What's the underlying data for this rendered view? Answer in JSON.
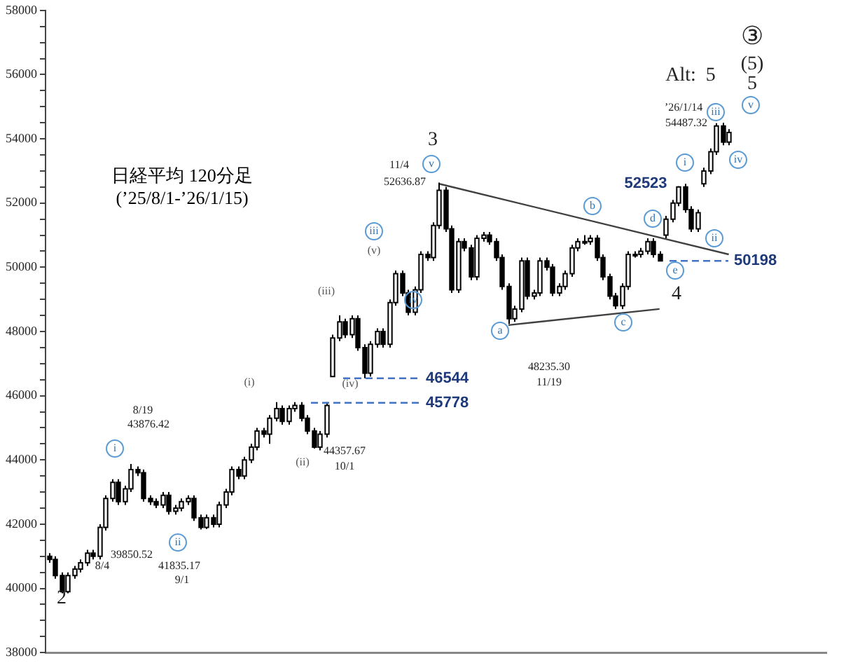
{
  "chart_data": {
    "type": "candlestick",
    "title": "日経平均 120分足",
    "subtitle": "(’25/8/1-’26/1/15)",
    "categories": [
      null,
      null,
      null,
      null,
      null,
      null,
      null,
      null,
      null,
      null,
      null,
      null,
      null,
      null,
      null,
      null,
      null,
      null,
      null,
      null,
      null,
      null,
      null,
      null,
      null,
      null,
      null,
      null,
      null,
      null,
      null,
      null,
      null,
      null,
      null,
      null,
      null,
      null,
      null,
      null,
      null,
      null,
      null,
      null,
      null,
      null,
      null,
      null,
      null,
      null,
      null,
      null,
      null,
      null,
      null,
      null,
      null,
      null,
      null,
      null,
      null,
      null,
      null,
      null,
      null,
      null,
      null,
      null,
      null,
      null,
      null,
      null,
      null,
      null,
      null,
      null,
      null,
      null,
      null,
      null,
      null,
      null,
      null,
      null,
      null,
      null,
      null,
      null,
      null,
      null,
      null,
      null,
      null,
      null,
      null,
      null,
      null,
      null,
      null,
      null,
      null,
      null,
      null,
      null,
      null,
      null,
      null,
      null,
      null,
      null,
      null,
      null,
      null,
      null,
      null,
      null,
      null,
      null,
      null,
      null,
      null,
      null,
      null,
      null
    ],
    "ohlc": [
      [
        41000,
        41100,
        40800,
        40900
      ],
      [
        40900,
        41000,
        40300,
        40400
      ],
      [
        40400,
        40500,
        39850,
        39900
      ],
      [
        39900,
        40500,
        39850,
        40400
      ],
      [
        40400,
        40700,
        40300,
        40600
      ],
      [
        40600,
        40900,
        40500,
        40800
      ],
      [
        40800,
        41200,
        40700,
        41100
      ],
      [
        41100,
        41200,
        40900,
        41000
      ],
      [
        41000,
        42000,
        40900,
        41900
      ],
      [
        41900,
        42900,
        41800,
        42800
      ],
      [
        42800,
        43400,
        42700,
        43300
      ],
      [
        43300,
        43400,
        42600,
        42700
      ],
      [
        42700,
        43200,
        42600,
        43100
      ],
      [
        43100,
        43876,
        43000,
        43700
      ],
      [
        43700,
        43800,
        43500,
        43600
      ],
      [
        43600,
        43700,
        42700,
        42800
      ],
      [
        42800,
        42900,
        42600,
        42700
      ],
      [
        42700,
        42800,
        42500,
        42600
      ],
      [
        42600,
        43000,
        42500,
        42900
      ],
      [
        42900,
        43000,
        42300,
        42400
      ],
      [
        42400,
        42600,
        42300,
        42500
      ],
      [
        42500,
        42800,
        42400,
        42700
      ],
      [
        42700,
        42900,
        42600,
        42800
      ],
      [
        42800,
        42900,
        42100,
        42200
      ],
      [
        42200,
        42300,
        41835,
        41900
      ],
      [
        41900,
        42300,
        41850,
        42200
      ],
      [
        42200,
        42300,
        41900,
        42000
      ],
      [
        42000,
        42700,
        41900,
        42600
      ],
      [
        42600,
        43100,
        42500,
        43000
      ],
      [
        43000,
        43800,
        42900,
        43700
      ],
      [
        43700,
        43800,
        43400,
        43500
      ],
      [
        43500,
        44100,
        43400,
        44000
      ],
      [
        44000,
        44500,
        43900,
        44400
      ],
      [
        44400,
        45000,
        44300,
        44900
      ],
      [
        44900,
        45000,
        44700,
        44800
      ],
      [
        44800,
        45400,
        44500,
        45300
      ],
      [
        45300,
        45800,
        45200,
        45600
      ],
      [
        45600,
        45700,
        45100,
        45200
      ],
      [
        45200,
        45700,
        45100,
        45600
      ],
      [
        45600,
        45800,
        45500,
        45700
      ],
      [
        45700,
        45800,
        45200,
        45300
      ],
      [
        45300,
        45400,
        44800,
        44900
      ],
      [
        44900,
        45000,
        44357,
        44400
      ],
      [
        44400,
        44900,
        44300,
        44800
      ],
      [
        44800,
        45800,
        44700,
        45700
      ],
      [
        46600,
        47900,
        46600,
        47800
      ],
      [
        47800,
        48500,
        47700,
        48300
      ],
      [
        48300,
        48400,
        47800,
        47900
      ],
      [
        47900,
        48500,
        47800,
        48400
      ],
      [
        48400,
        48500,
        47400,
        47500
      ],
      [
        47500,
        47600,
        46544,
        46700
      ],
      [
        46700,
        47700,
        46600,
        47600
      ],
      [
        47600,
        48100,
        47500,
        48000
      ],
      [
        48000,
        48100,
        47500,
        47600
      ],
      [
        47600,
        49000,
        47500,
        48900
      ],
      [
        48900,
        49900,
        48800,
        49800
      ],
      [
        49800,
        49900,
        49100,
        49200
      ],
      [
        49200,
        49300,
        48500,
        48600
      ],
      [
        48600,
        49400,
        48500,
        49300
      ],
      [
        49300,
        50500,
        49200,
        50400
      ],
      [
        50400,
        50500,
        50200,
        50300
      ],
      [
        50300,
        51400,
        50200,
        51300
      ],
      [
        51300,
        52637,
        51200,
        52400
      ],
      [
        52400,
        52500,
        51100,
        51200
      ],
      [
        51200,
        51300,
        49200,
        49300
      ],
      [
        49300,
        50900,
        49200,
        50800
      ],
      [
        50800,
        50900,
        50500,
        50600
      ],
      [
        50600,
        50700,
        49600,
        49700
      ],
      [
        49700,
        51000,
        49600,
        50900
      ],
      [
        50900,
        51100,
        50800,
        51000
      ],
      [
        51000,
        51100,
        50700,
        50800
      ],
      [
        50800,
        50900,
        50200,
        50300
      ],
      [
        50300,
        50400,
        49300,
        49400
      ],
      [
        49400,
        49500,
        48235,
        48400
      ],
      [
        48400,
        48800,
        48300,
        48700
      ],
      [
        48700,
        50300,
        48600,
        50200
      ],
      [
        50200,
        50300,
        49000,
        49100
      ],
      [
        49100,
        49300,
        49000,
        49200
      ],
      [
        49200,
        50300,
        49100,
        50200
      ],
      [
        50200,
        50300,
        49900,
        50000
      ],
      [
        50000,
        50100,
        49100,
        49200
      ],
      [
        49200,
        49500,
        49100,
        49400
      ],
      [
        49400,
        49900,
        49300,
        49800
      ],
      [
        49800,
        50700,
        49700,
        50600
      ],
      [
        50600,
        50900,
        50500,
        50800
      ],
      [
        50800,
        51000,
        50700,
        50800
      ],
      [
        50800,
        51000,
        50700,
        50900
      ],
      [
        50900,
        51000,
        50200,
        50300
      ],
      [
        50300,
        50400,
        49600,
        49700
      ],
      [
        49700,
        49800,
        49000,
        49100
      ],
      [
        49100,
        49200,
        48700,
        48800
      ],
      [
        48800,
        49500,
        48700,
        49400
      ],
      [
        49400,
        50500,
        49300,
        50400
      ],
      [
        50400,
        50500,
        50300,
        50400
      ],
      [
        50400,
        50600,
        50300,
        50500
      ],
      [
        50500,
        50900,
        50400,
        50800
      ],
      [
        50800,
        50900,
        50300,
        50400
      ],
      [
        50400,
        50500,
        50198,
        50200
      ],
      [
        51000,
        51600,
        50900,
        51500
      ],
      [
        51500,
        52100,
        51400,
        52000
      ],
      [
        52000,
        52523,
        51900,
        52500
      ],
      [
        52500,
        52600,
        51700,
        51800
      ],
      [
        51800,
        51900,
        51100,
        51200
      ],
      [
        51200,
        51800,
        51100,
        51700
      ],
      [
        52600,
        53100,
        52500,
        53000
      ],
      [
        53000,
        53700,
        52900,
        53600
      ],
      [
        53600,
        54487,
        53500,
        54400
      ],
      [
        54400,
        54500,
        53800,
        53900
      ],
      [
        53900,
        54300,
        53800,
        54200
      ],
      null,
      null,
      null,
      null,
      null,
      null,
      null,
      null,
      null,
      null,
      null,
      null,
      null,
      null,
      null
    ],
    "series": [
      {
        "type": "line",
        "color": "#404040",
        "values": [
          null,
          null,
          null,
          null,
          null,
          null,
          null,
          null,
          null,
          null,
          null,
          null,
          null,
          null,
          null,
          null,
          null,
          null,
          null,
          null,
          null,
          null,
          null,
          null,
          null,
          null,
          null,
          null,
          null,
          null,
          null,
          null,
          null,
          null,
          null,
          null,
          null,
          null,
          null,
          null,
          null,
          null,
          null,
          null,
          null,
          null,
          null,
          null,
          null,
          null,
          null,
          null,
          null,
          null,
          null,
          null,
          null,
          null,
          null,
          null,
          null,
          null,
          52600,
          null,
          null,
          null,
          null,
          null,
          null,
          null,
          null,
          null,
          null,
          null,
          null,
          null,
          null,
          null,
          null,
          null,
          null,
          null,
          null,
          null,
          null,
          null,
          null,
          null,
          null,
          null,
          null,
          null,
          null,
          null,
          null,
          null,
          null,
          null,
          null,
          null,
          null,
          null,
          null,
          null,
          null,
          null,
          null,
          null,
          50400,
          null,
          null,
          null,
          null,
          null,
          null,
          null,
          null,
          null,
          null,
          null,
          null,
          null,
          null,
          null
        ]
      },
      {
        "type": "line",
        "color": "#404040",
        "values": [
          null,
          null,
          null,
          null,
          null,
          null,
          null,
          null,
          null,
          null,
          null,
          null,
          null,
          null,
          null,
          null,
          null,
          null,
          null,
          null,
          null,
          null,
          null,
          null,
          null,
          null,
          null,
          null,
          null,
          null,
          null,
          null,
          null,
          null,
          null,
          null,
          null,
          null,
          null,
          null,
          null,
          null,
          null,
          null,
          null,
          null,
          null,
          null,
          null,
          null,
          null,
          null,
          null,
          null,
          null,
          null,
          null,
          null,
          null,
          null,
          null,
          null,
          null,
          null,
          null,
          null,
          null,
          null,
          null,
          null,
          null,
          null,
          null,
          48200,
          null,
          null,
          null,
          null,
          null,
          null,
          null,
          null,
          null,
          null,
          null,
          null,
          null,
          null,
          null,
          null,
          null,
          null,
          null,
          null,
          null,
          null,
          null,
          48700,
          null,
          null,
          null,
          null,
          null,
          null,
          null,
          null,
          null,
          null,
          null,
          null,
          null,
          null,
          null,
          null,
          null,
          null,
          null,
          null,
          null,
          null,
          null,
          null,
          null,
          null
        ]
      }
    ],
    "ylim": [
      38000,
      58000
    ],
    "yticks": [
      38000,
      {
        "value": 38500,
        "label": null
      },
      {
        "value": 39000,
        "label": null
      },
      {
        "value": 39500,
        "label": null
      },
      40000,
      {
        "value": 40500,
        "label": null
      },
      {
        "value": 41000,
        "label": null
      },
      {
        "value": 41500,
        "label": null
      },
      42000,
      {
        "value": 42500,
        "label": null
      },
      {
        "value": 43000,
        "label": null
      },
      {
        "value": 43500,
        "label": null
      },
      44000,
      {
        "value": 44500,
        "label": null
      },
      {
        "value": 45000,
        "label": null
      },
      {
        "value": 45500,
        "label": null
      },
      46000,
      {
        "value": 46500,
        "label": null
      },
      {
        "value": 47000,
        "label": null
      },
      {
        "value": 47500,
        "label": null
      },
      48000,
      {
        "value": 48500,
        "label": null
      },
      {
        "value": 49000,
        "label": null
      },
      {
        "value": 49500,
        "label": null
      },
      50000,
      {
        "value": 50500,
        "label": null
      },
      {
        "value": 51000,
        "label": null
      },
      {
        "value": 51500,
        "label": null
      },
      52000,
      {
        "value": 52500,
        "label": null
      },
      {
        "value": 53000,
        "label": null
      },
      {
        "value": 53500,
        "label": null
      },
      54000,
      {
        "value": 54500,
        "label": null
      },
      {
        "value": 55000,
        "label": null
      },
      {
        "value": 55500,
        "label": null
      },
      56000,
      {
        "value": 56500,
        "label": null
      },
      {
        "value": 57000,
        "label": null
      },
      {
        "value": 57500,
        "label": null
      },
      58000
    ],
    "tick_labels": "y",
    "grid": false,
    "legend": false,
    "ref_lines": [
      {
        "axis": "y",
        "value": 46544,
        "label": "46544",
        "color": "#4472c4",
        "line_style": "dashed"
      },
      {
        "axis": "y",
        "value": 45778,
        "label": "45778",
        "color": "#4472c4",
        "line_style": "dashed"
      },
      {
        "axis": "y",
        "value": 50198,
        "label": "50198",
        "color": "#4472c4",
        "line_style": "dashed"
      }
    ],
    "annotations": [
      "2",
      "39850.52",
      "8/4",
      "i",
      "8/19",
      "43876.42",
      "ii",
      "41835.17",
      "9/1",
      "(i)",
      "(ii)",
      "44357.67",
      "10/1",
      "(iii)",
      "(iv)",
      "iii",
      "(v)",
      "iv",
      "3",
      "11/4",
      "52636.87",
      "v",
      "a",
      "48235.30",
      "11/19",
      "b",
      "c",
      "d",
      "e",
      "4",
      "52523",
      "i",
      "ii",
      "’26/1/14",
      "54487.32",
      "iii",
      "iv",
      "Alt:  5",
      "③",
      "(5)",
      "5",
      "v"
    ]
  }
}
